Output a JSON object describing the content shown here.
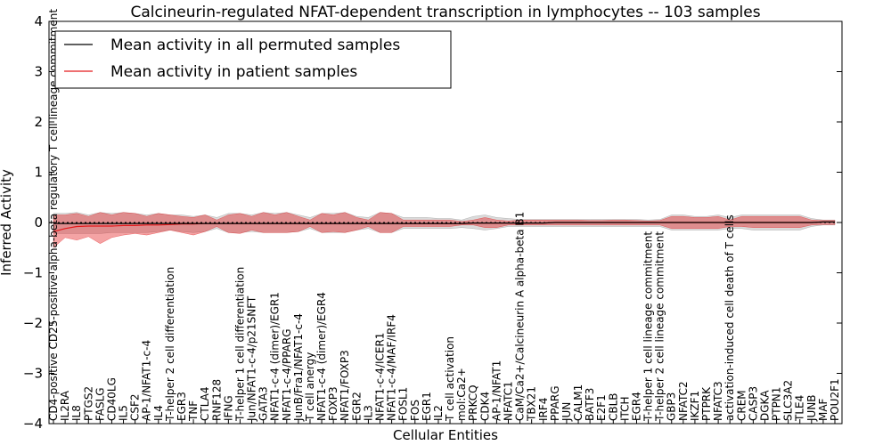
{
  "chart_data": {
    "type": "line",
    "title": "Calcineurin-regulated NFAT-dependent transcription in lymphocytes -- 103 samples",
    "xlabel": "Cellular Entities",
    "ylabel": "Inferred Activity",
    "ylim": [
      -4,
      4
    ],
    "yticks": [
      "4",
      "3",
      "2",
      "1",
      "0",
      "−1",
      "−2",
      "−3",
      "−4"
    ],
    "grid": false,
    "legend": {
      "placement": "top-left",
      "entries": [
        {
          "name": "Mean activity in all permuted samples",
          "color": "#000000"
        },
        {
          "name": "Mean activity in patient samples",
          "color": "#e31a1c"
        }
      ]
    },
    "categories": [
      "CD4-positive CD25-positive alpha-beta regulatory T cell lineage commitment",
      "IL2RA",
      "IL8",
      "PTGS2",
      "FASLG",
      "CD40LG",
      "IL5",
      "CSF2",
      "AP-1/NFAT1-c-4",
      "IL4",
      "T-helper 2 cell differentiation",
      "EGR3",
      "TNF",
      "CTLA4",
      "RNF128",
      "IFNG",
      "T-helper 1 cell differentiation",
      "Jun/NFAT1-c-4/p21SNFT",
      "GATA3",
      "NFAT1-c-4 (dimer)/EGR1",
      "NFAT1-c-4/PPARG",
      "JunB/Fra1/NFAT1-c-4",
      "T cell anergy",
      "NFAT1-c-4 (dimer)/EGR4",
      "FOXP3",
      "NFAT1/FOXP3",
      "EGR2",
      "IL3",
      "NFAT1-c-4/ICER1",
      "NFAT1-c-4/MAF/IRF4",
      "FOSL1",
      "FOS",
      "EGR1",
      "IL2",
      "T cell activation",
      "mol:Ca2+",
      "PRKCQ",
      "CDK4",
      "AP-1/NFAT1",
      "NFATC1",
      "CaM/Ca2+/Calcineurin A alpha-beta B1",
      "TBX21",
      "IRF4",
      "PPARG",
      "JUN",
      "CALM1",
      "BATF3",
      "E2F1",
      "CBLB",
      "ITCH",
      "EGR4",
      "T-helper 1 cell lineage commitment",
      "T-helper 2 cell lineage commitment",
      "GBP3",
      "NFATC2",
      "IKZF1",
      "PTPRK",
      "NFATC3",
      "activation-induced cell death of T cells",
      "CREM",
      "CASP3",
      "DGKA",
      "PTPN1",
      "SLC3A2",
      "TLE4",
      "JUNB",
      "MAF",
      "POU2F1"
    ],
    "series": [
      {
        "name": "Mean activity in patient samples",
        "color": "#e31a1c",
        "values": [
          -0.18,
          -0.12,
          -0.08,
          -0.07,
          -0.07,
          -0.07,
          -0.06,
          -0.06,
          -0.05,
          -0.05,
          -0.04,
          -0.03,
          -0.03,
          -0.02,
          -0.02,
          -0.02,
          -0.02,
          -0.02,
          -0.02,
          -0.02,
          -0.02,
          -0.02,
          -0.02,
          -0.02,
          -0.02,
          -0.02,
          -0.02,
          -0.02,
          -0.02,
          -0.02,
          -0.02,
          -0.02,
          -0.02,
          -0.02,
          -0.02,
          -0.02,
          -0.01,
          -0.01,
          -0.01,
          -0.01,
          -0.01,
          -0.01,
          -0.01,
          0.0,
          0.0,
          0.0,
          0.0,
          0.0,
          0.0,
          0.0,
          0.0,
          0.0,
          0.0,
          0.0,
          0.0,
          0.0,
          0.0,
          0.0,
          0.0,
          0.0,
          0.0,
          0.0,
          0.0,
          0.0,
          0.0,
          0.0,
          0.01,
          0.01
        ],
        "band_upper": [
          0.15,
          0.15,
          0.18,
          0.12,
          0.2,
          0.15,
          0.2,
          0.18,
          0.12,
          0.18,
          0.15,
          0.12,
          0.1,
          0.15,
          0.05,
          0.15,
          0.18,
          0.12,
          0.2,
          0.15,
          0.2,
          0.12,
          0.05,
          0.18,
          0.15,
          0.2,
          0.1,
          0.05,
          0.2,
          0.18,
          0.05,
          0.05,
          0.05,
          0.05,
          0.05,
          0.02,
          0.05,
          0.1,
          0.05,
          0.03,
          0.05,
          0.05,
          0.05,
          0.05,
          0.05,
          0.05,
          0.04,
          0.04,
          0.05,
          0.05,
          0.04,
          0.03,
          0.04,
          0.12,
          0.12,
          0.1,
          0.1,
          0.12,
          0.05,
          0.12,
          0.12,
          0.12,
          0.12,
          0.12,
          0.12,
          0.05,
          0.04,
          0.04
        ],
        "band_lower": [
          -0.5,
          -0.3,
          -0.35,
          -0.28,
          -0.42,
          -0.3,
          -0.25,
          -0.22,
          -0.25,
          -0.2,
          -0.15,
          -0.2,
          -0.25,
          -0.18,
          -0.08,
          -0.2,
          -0.22,
          -0.15,
          -0.2,
          -0.2,
          -0.2,
          -0.18,
          -0.08,
          -0.2,
          -0.18,
          -0.2,
          -0.15,
          -0.08,
          -0.2,
          -0.2,
          -0.08,
          -0.08,
          -0.08,
          -0.08,
          -0.08,
          -0.05,
          -0.05,
          -0.1,
          -0.1,
          -0.05,
          -0.05,
          -0.05,
          -0.05,
          -0.05,
          -0.05,
          -0.05,
          -0.05,
          -0.05,
          -0.05,
          -0.05,
          -0.05,
          -0.05,
          -0.05,
          -0.12,
          -0.12,
          -0.12,
          -0.12,
          -0.12,
          -0.08,
          -0.08,
          -0.1,
          -0.1,
          -0.1,
          -0.1,
          -0.1,
          -0.05,
          -0.04,
          -0.04
        ]
      },
      {
        "name": "Mean activity in all permuted samples",
        "color": "#000000",
        "values": [
          -0.02,
          -0.02,
          -0.02,
          -0.02,
          -0.02,
          -0.02,
          -0.02,
          -0.02,
          -0.02,
          -0.02,
          -0.02,
          -0.02,
          -0.02,
          -0.02,
          -0.02,
          -0.02,
          -0.02,
          -0.02,
          -0.02,
          -0.02,
          -0.02,
          -0.02,
          -0.02,
          -0.02,
          -0.02,
          -0.02,
          -0.02,
          -0.02,
          -0.02,
          -0.02,
          -0.02,
          -0.02,
          -0.02,
          -0.02,
          -0.02,
          -0.02,
          -0.01,
          -0.01,
          -0.01,
          -0.01,
          -0.01,
          -0.01,
          -0.01,
          0.0,
          0.0,
          0.0,
          0.0,
          0.0,
          0.0,
          0.0,
          0.0,
          0.0,
          0.0,
          0.0,
          0.0,
          0.0,
          0.0,
          0.0,
          0.0,
          0.0,
          0.0,
          0.0,
          0.0,
          0.0,
          0.0,
          0.0,
          0.01,
          0.01
        ],
        "band_upper": [
          0.18,
          0.18,
          0.2,
          0.15,
          0.2,
          0.18,
          0.2,
          0.18,
          0.15,
          0.18,
          0.15,
          0.15,
          0.12,
          0.15,
          0.1,
          0.18,
          0.18,
          0.15,
          0.2,
          0.18,
          0.2,
          0.15,
          0.1,
          0.18,
          0.18,
          0.2,
          0.12,
          0.1,
          0.2,
          0.18,
          0.1,
          0.1,
          0.1,
          0.08,
          0.08,
          0.05,
          0.12,
          0.15,
          0.1,
          0.08,
          0.06,
          0.06,
          0.06,
          0.06,
          0.06,
          0.06,
          0.06,
          0.06,
          0.06,
          0.06,
          0.06,
          0.05,
          0.06,
          0.15,
          0.15,
          0.12,
          0.12,
          0.15,
          0.1,
          0.15,
          0.15,
          0.15,
          0.15,
          0.15,
          0.15,
          0.08,
          0.05,
          0.05
        ],
        "band_lower": [
          -0.22,
          -0.22,
          -0.22,
          -0.22,
          -0.22,
          -0.2,
          -0.2,
          -0.2,
          -0.2,
          -0.18,
          -0.15,
          -0.18,
          -0.2,
          -0.18,
          -0.12,
          -0.2,
          -0.2,
          -0.18,
          -0.2,
          -0.2,
          -0.2,
          -0.18,
          -0.12,
          -0.2,
          -0.2,
          -0.2,
          -0.15,
          -0.12,
          -0.2,
          -0.2,
          -0.12,
          -0.12,
          -0.12,
          -0.12,
          -0.12,
          -0.1,
          -0.12,
          -0.15,
          -0.12,
          -0.08,
          -0.08,
          -0.08,
          -0.08,
          -0.08,
          -0.08,
          -0.08,
          -0.08,
          -0.08,
          -0.08,
          -0.08,
          -0.08,
          -0.08,
          -0.08,
          -0.15,
          -0.15,
          -0.15,
          -0.15,
          -0.15,
          -0.12,
          -0.12,
          -0.15,
          -0.15,
          -0.15,
          -0.15,
          -0.15,
          -0.08,
          -0.05,
          -0.05
        ]
      }
    ]
  }
}
